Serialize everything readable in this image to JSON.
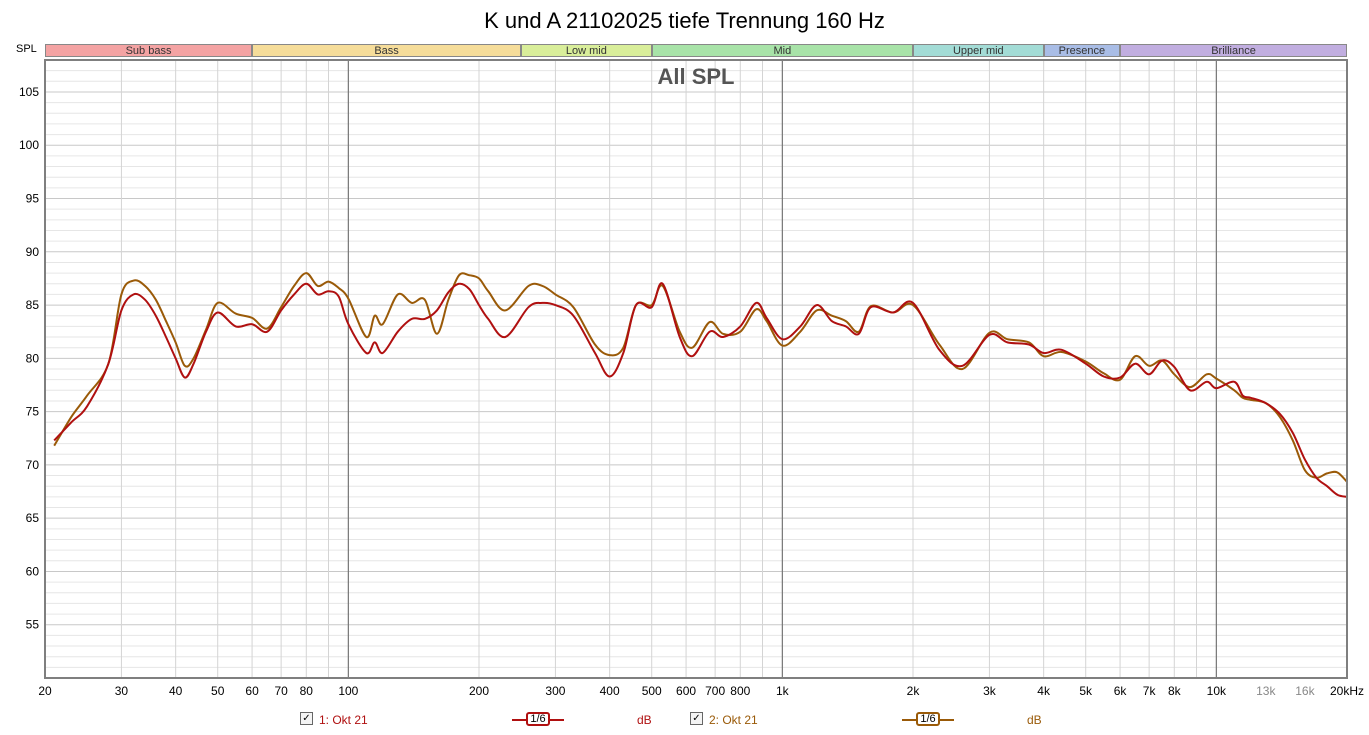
{
  "title": "K und A 21102025 tiefe Trennung 160 Hz",
  "spl_label": "SPL",
  "band_labels": [
    {
      "name": "Sub bass",
      "from": 20,
      "to": 60,
      "color": "#f4a3a3"
    },
    {
      "name": "Bass",
      "from": 60,
      "to": 250,
      "color": "#f6dd9a"
    },
    {
      "name": "Low mid",
      "from": 250,
      "to": 500,
      "color": "#d9ee9a"
    },
    {
      "name": "Mid",
      "from": 500,
      "to": 2000,
      "color": "#a8e3a8"
    },
    {
      "name": "Upper mid",
      "from": 2000,
      "to": 4000,
      "color": "#a3dcd6"
    },
    {
      "name": "Presence",
      "from": 4000,
      "to": 6000,
      "color": "#a9bde6"
    },
    {
      "name": "Brilliance",
      "from": 6000,
      "to": 20000,
      "color": "#c1aee0"
    }
  ],
  "chart_data": {
    "type": "line",
    "title": "K und A 21102025 tiefe Trennung 160 Hz",
    "inner_title": "All SPL",
    "xlabel": "",
    "ylabel": "",
    "x_scale": "log",
    "xlim": [
      20,
      20000
    ],
    "ylim": [
      50,
      108
    ],
    "grid": true,
    "x_ticks": [
      {
        "v": 20,
        "label": "20"
      },
      {
        "v": 30,
        "label": "30"
      },
      {
        "v": 40,
        "label": "40"
      },
      {
        "v": 50,
        "label": "50"
      },
      {
        "v": 60,
        "label": "60"
      },
      {
        "v": 70,
        "label": "70"
      },
      {
        "v": 80,
        "label": "80"
      },
      {
        "v": 100,
        "label": "100"
      },
      {
        "v": 200,
        "label": "200"
      },
      {
        "v": 300,
        "label": "300"
      },
      {
        "v": 400,
        "label": "400"
      },
      {
        "v": 500,
        "label": "500"
      },
      {
        "v": 600,
        "label": "600"
      },
      {
        "v": 700,
        "label": "700"
      },
      {
        "v": 800,
        "label": "800"
      },
      {
        "v": 1000,
        "label": "1k"
      },
      {
        "v": 2000,
        "label": "2k"
      },
      {
        "v": 3000,
        "label": "3k"
      },
      {
        "v": 4000,
        "label": "4k"
      },
      {
        "v": 5000,
        "label": "5k"
      },
      {
        "v": 6000,
        "label": "6k"
      },
      {
        "v": 7000,
        "label": "7k"
      },
      {
        "v": 8000,
        "label": "8k"
      },
      {
        "v": 10000,
        "label": "10k"
      },
      {
        "v": 13000,
        "label": "13k"
      },
      {
        "v": 16000,
        "label": "16k"
      },
      {
        "v": 20000,
        "label": "20kHz"
      }
    ],
    "y_ticks": [
      55,
      60,
      65,
      70,
      75,
      80,
      85,
      90,
      95,
      100,
      105
    ],
    "series": [
      {
        "name": "1: Okt 21",
        "color": "#b01010",
        "smoothing": "1/6",
        "unit": "dB",
        "x": [
          21,
          23,
          25,
          28,
          30,
          32,
          34,
          36,
          38,
          40,
          42,
          44,
          47,
          50,
          55,
          60,
          65,
          70,
          75,
          80,
          85,
          90,
          95,
          100,
          110,
          115,
          120,
          130,
          140,
          150,
          160,
          170,
          180,
          190,
          200,
          210,
          230,
          260,
          280,
          300,
          330,
          370,
          400,
          430,
          460,
          500,
          530,
          580,
          620,
          680,
          730,
          800,
          870,
          920,
          1000,
          1100,
          1200,
          1300,
          1400,
          1500,
          1600,
          1800,
          2000,
          2300,
          2600,
          3000,
          3300,
          3700,
          4000,
          4400,
          5000,
          5500,
          6000,
          6500,
          7000,
          7500,
          8000,
          8700,
          9500,
          10000,
          11000,
          11500,
          12000,
          13000,
          14000,
          15000,
          16000,
          17000,
          18000,
          19000,
          20000
        ],
        "y": [
          72.3,
          74.0,
          75.5,
          79.5,
          84.5,
          86.0,
          85.5,
          84.0,
          82.0,
          80.0,
          78.2,
          79.5,
          82.5,
          84.3,
          83.0,
          83.2,
          82.5,
          84.5,
          86.0,
          87.0,
          86.0,
          86.3,
          85.8,
          83.2,
          80.5,
          81.5,
          80.5,
          82.5,
          83.7,
          83.7,
          84.5,
          86.2,
          87.0,
          86.5,
          85.0,
          83.7,
          82.0,
          84.8,
          85.2,
          85.0,
          84.0,
          80.5,
          78.3,
          80.5,
          85.0,
          84.8,
          87.0,
          82.0,
          80.2,
          82.5,
          82.0,
          83.0,
          85.2,
          83.8,
          81.8,
          83.0,
          85.0,
          83.5,
          83.0,
          82.3,
          84.8,
          84.3,
          85.2,
          80.8,
          79.3,
          82.2,
          81.5,
          81.3,
          80.5,
          80.8,
          79.5,
          78.3,
          78.2,
          79.5,
          78.5,
          79.8,
          79.2,
          77.0,
          77.8,
          77.2,
          77.8,
          76.5,
          76.3,
          75.8,
          74.8,
          73.0,
          70.5,
          68.8,
          68.0,
          67.2,
          67.0
        ]
      },
      {
        "name": "2: Okt 21",
        "color": "#9a5a08",
        "smoothing": "1/6",
        "unit": "dB",
        "x": [
          21,
          23,
          25,
          28,
          30,
          32,
          34,
          36,
          38,
          40,
          42,
          44,
          47,
          50,
          55,
          60,
          65,
          70,
          75,
          80,
          85,
          90,
          95,
          100,
          110,
          115,
          120,
          130,
          140,
          150,
          160,
          170,
          180,
          190,
          200,
          210,
          230,
          260,
          280,
          300,
          330,
          370,
          400,
          430,
          460,
          500,
          530,
          580,
          620,
          680,
          730,
          800,
          870,
          920,
          1000,
          1100,
          1200,
          1300,
          1400,
          1500,
          1600,
          1800,
          2000,
          2300,
          2600,
          3000,
          3300,
          3700,
          4000,
          4400,
          5000,
          5500,
          6000,
          6500,
          7000,
          7500,
          8000,
          8700,
          9500,
          10000,
          11000,
          11500,
          12000,
          13000,
          14000,
          15000,
          16000,
          17000,
          18000,
          19000,
          20000
        ],
        "y": [
          71.8,
          74.5,
          76.5,
          79.5,
          86.0,
          87.3,
          86.8,
          85.5,
          83.5,
          81.5,
          79.3,
          80.0,
          82.7,
          85.2,
          84.2,
          83.8,
          82.8,
          84.8,
          86.8,
          88.0,
          86.8,
          87.2,
          86.6,
          85.6,
          82.0,
          84.0,
          83.2,
          86.0,
          85.2,
          85.5,
          82.3,
          85.5,
          87.8,
          87.8,
          87.5,
          86.3,
          84.5,
          86.8,
          86.8,
          86.0,
          84.8,
          81.3,
          80.3,
          81.0,
          85.0,
          85.0,
          86.8,
          82.5,
          81.0,
          83.4,
          82.3,
          82.5,
          84.6,
          83.5,
          81.2,
          82.5,
          84.5,
          84.0,
          83.5,
          82.5,
          84.9,
          84.3,
          85.0,
          81.3,
          79.0,
          82.4,
          81.8,
          81.5,
          80.2,
          80.6,
          79.7,
          78.6,
          78.0,
          80.2,
          79.3,
          79.8,
          78.5,
          77.3,
          78.5,
          78.1,
          77.0,
          76.3,
          76.1,
          75.8,
          74.5,
          72.3,
          69.5,
          68.8,
          69.2,
          69.3,
          68.4
        ]
      }
    ]
  },
  "legend": [
    {
      "checked": "✓",
      "label": "1: Okt 21",
      "smoothing": "1/6",
      "unit": "dB",
      "color": "#b01010"
    },
    {
      "checked": "✓",
      "label": "2: Okt 21",
      "smoothing": "1/6",
      "unit": "dB",
      "color": "#9a5a08"
    }
  ]
}
